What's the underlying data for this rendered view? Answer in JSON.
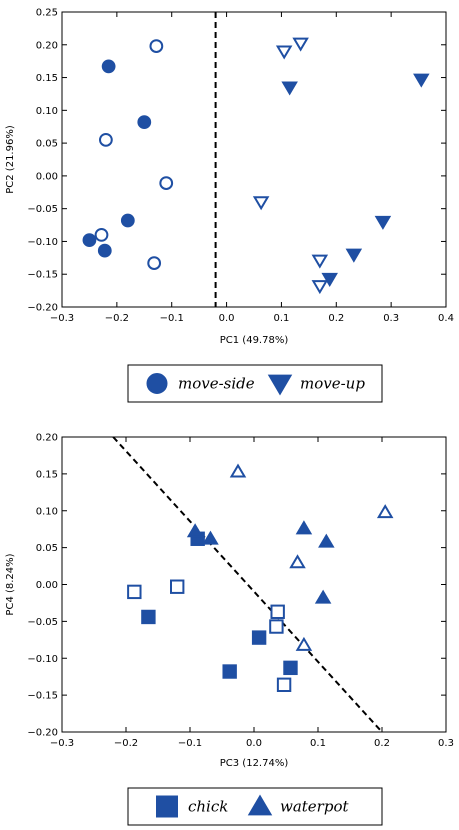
{
  "colors": {
    "marker": "#1f4fa3",
    "axis": "#000000"
  },
  "chart_data": [
    {
      "type": "scatter",
      "xlabel": "PC1 (49.78%)",
      "ylabel": "PC2 (21.96%)",
      "xlim": [
        -0.3,
        0.4
      ],
      "ylim": [
        -0.2,
        0.25
      ],
      "xticks": [
        "−0.3",
        "−0.2",
        "−0.1",
        "0.0",
        "0.1",
        "0.2",
        "0.3",
        "0.4"
      ],
      "yticks": [
        "0.25",
        "0.20",
        "0.15",
        "0.10",
        "0.05",
        "0.00",
        "−0.05",
        "−0.10",
        "−0.15",
        "−0.20"
      ],
      "divider": {
        "style": "dashed",
        "x1": -0.02,
        "y1": 0.25,
        "x2": -0.02,
        "y2": -0.2
      },
      "legend": {
        "placement": "below",
        "entries": [
          {
            "label": "move-side",
            "marker": "circle"
          },
          {
            "label": "move-up",
            "marker": "triangle-down"
          }
        ]
      },
      "series": [
        {
          "name": "move-side",
          "marker": "circle",
          "filled": true,
          "points": [
            [
              -0.215,
              0.167
            ],
            [
              -0.15,
              0.082
            ],
            [
              -0.18,
              -0.068
            ],
            [
              -0.25,
              -0.098
            ],
            [
              -0.222,
              -0.114
            ]
          ]
        },
        {
          "name": "move-side",
          "marker": "circle",
          "filled": false,
          "points": [
            [
              -0.128,
              0.198
            ],
            [
              -0.22,
              0.055
            ],
            [
              -0.11,
              -0.011
            ],
            [
              -0.228,
              -0.09
            ],
            [
              -0.132,
              -0.133
            ]
          ]
        },
        {
          "name": "move-up",
          "marker": "triangle-down",
          "filled": true,
          "points": [
            [
              0.355,
              0.147
            ],
            [
              0.115,
              0.135
            ],
            [
              0.285,
              -0.07
            ],
            [
              0.232,
              -0.12
            ],
            [
              0.188,
              -0.157
            ]
          ]
        },
        {
          "name": "move-up",
          "marker": "triangle-down",
          "filled": false,
          "points": [
            [
              0.135,
              0.202
            ],
            [
              0.105,
              0.19
            ],
            [
              0.063,
              -0.04
            ],
            [
              0.17,
              -0.129
            ],
            [
              0.17,
              -0.168
            ]
          ]
        }
      ]
    },
    {
      "type": "scatter",
      "xlabel": "PC3 (12.74%)",
      "ylabel": "PC4 (8.24%)",
      "xlim": [
        -0.3,
        0.3
      ],
      "ylim": [
        -0.2,
        0.2
      ],
      "xticks": [
        "−0.3",
        "−0.2",
        "−0.1",
        "0.0",
        "0.1",
        "0.2",
        "0.3"
      ],
      "yticks": [
        "0.20",
        "0.15",
        "0.10",
        "0.05",
        "0.00",
        "−0.05",
        "−0.10",
        "−0.15",
        "−0.20"
      ],
      "divider": {
        "style": "dashed",
        "x1": -0.22,
        "y1": 0.2,
        "x2": 0.2,
        "y2": -0.2
      },
      "legend": {
        "placement": "below",
        "entries": [
          {
            "label": "chick",
            "marker": "square"
          },
          {
            "label": "waterpot",
            "marker": "triangle-up"
          }
        ]
      },
      "series": [
        {
          "name": "chick",
          "marker": "square",
          "filled": true,
          "points": [
            [
              -0.088,
              0.062
            ],
            [
              -0.165,
              -0.044
            ],
            [
              0.008,
              -0.072
            ],
            [
              0.057,
              -0.113
            ],
            [
              -0.038,
              -0.118
            ]
          ]
        },
        {
          "name": "chick",
          "marker": "square",
          "filled": false,
          "points": [
            [
              -0.187,
              -0.01
            ],
            [
              -0.12,
              -0.003
            ],
            [
              0.037,
              -0.037
            ],
            [
              0.035,
              -0.057
            ],
            [
              0.047,
              -0.136
            ]
          ]
        },
        {
          "name": "waterpot",
          "marker": "triangle-up",
          "filled": true,
          "points": [
            [
              -0.092,
              0.072
            ],
            [
              -0.068,
              0.062
            ],
            [
              0.078,
              0.076
            ],
            [
              0.113,
              0.058
            ],
            [
              0.108,
              -0.018
            ]
          ]
        },
        {
          "name": "waterpot",
          "marker": "triangle-up",
          "filled": false,
          "points": [
            [
              -0.025,
              0.153
            ],
            [
              0.205,
              0.098
            ],
            [
              0.068,
              0.03
            ],
            [
              0.078,
              -0.082
            ]
          ]
        }
      ]
    }
  ]
}
